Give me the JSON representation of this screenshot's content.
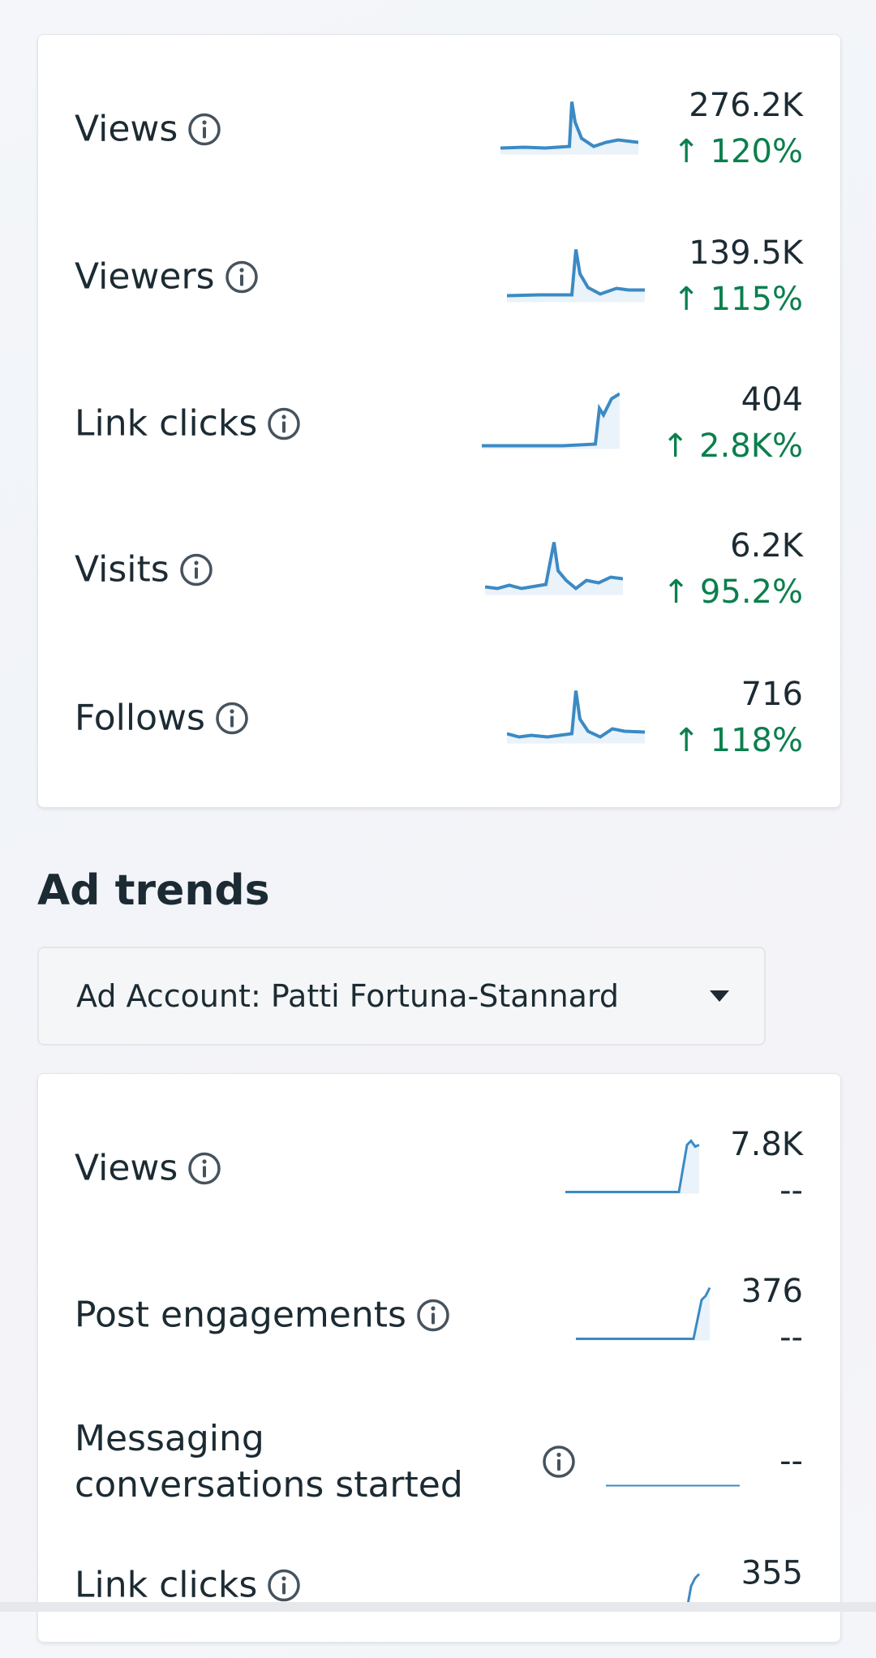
{
  "insights": {
    "rows": [
      {
        "label": "Views",
        "value": "276.2K",
        "change": "↑ 120%"
      },
      {
        "label": "Viewers",
        "value": "139.5K",
        "change": "↑ 115%"
      },
      {
        "label": "Link clicks",
        "value": "404",
        "change": "↑ 2.8K%"
      },
      {
        "label": "Visits",
        "value": "6.2K",
        "change": "↑ 95.2%"
      },
      {
        "label": "Follows",
        "value": "716",
        "change": "↑ 118%"
      }
    ]
  },
  "ad_trends": {
    "title": "Ad trends",
    "account": "Ad Account: Patti Fortuna-Stannard",
    "rows": [
      {
        "label": "Views",
        "value": "7.8K",
        "change": "--"
      },
      {
        "label": "Post engagements",
        "value": "376",
        "change": "--"
      },
      {
        "label": "Messaging conversations started",
        "change": "--"
      },
      {
        "label": "Link clicks",
        "value": "355"
      }
    ]
  }
}
